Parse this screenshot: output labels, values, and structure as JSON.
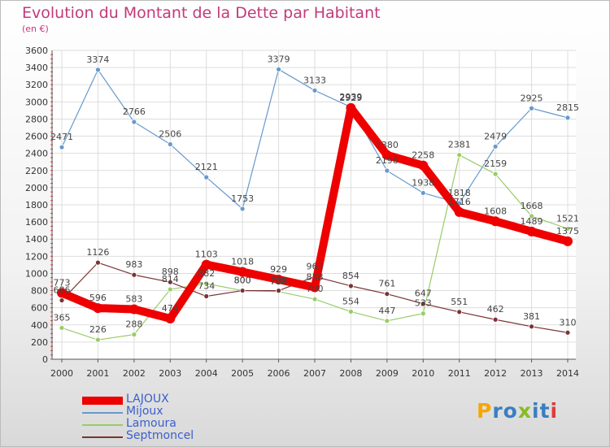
{
  "chart_data": {
    "type": "line",
    "title": "Evolution du Montant de la Dette par Habitant",
    "subtitle": "(en €)",
    "categories": [
      "2000",
      "2001",
      "2002",
      "2003",
      "2004",
      "2005",
      "2006",
      "2007",
      "2008",
      "2009",
      "2010",
      "2011",
      "2012",
      "2013",
      "2014"
    ],
    "ylim": [
      0,
      3600
    ],
    "yticks": [
      0,
      200,
      400,
      600,
      800,
      1000,
      1200,
      1400,
      1600,
      1800,
      2000,
      2200,
      2400,
      2600,
      2800,
      3000,
      3200,
      3400,
      3600
    ],
    "grid": true,
    "legend_position": "bottom-left",
    "series": [
      {
        "name": "LAJOUX",
        "color": "#ee0000",
        "values": [
          773,
          596,
          583,
          474,
          1103,
          1018,
          929,
          838,
          2929,
          2380,
          2258,
          1716,
          1608,
          1489,
          1375
        ]
      },
      {
        "name": "Mijoux",
        "color": "#6699cc",
        "values": [
          2471,
          3374,
          2766,
          2506,
          2121,
          1753,
          3379,
          3133,
          2939,
          2198,
          1938,
          1818,
          2479,
          2925,
          2815
        ]
      },
      {
        "name": "Lamoura",
        "color": "#99cc66",
        "values": [
          365,
          226,
          288,
          814,
          882,
          800,
          788,
          700,
          554,
          447,
          533,
          2381,
          2159,
          1668,
          1521
        ]
      },
      {
        "name": "Septmoncel",
        "color": "#7a3333",
        "values": [
          686,
          1126,
          983,
          898,
          734,
          800,
          799,
          963,
          854,
          761,
          647,
          551,
          462,
          381,
          310
        ]
      }
    ]
  },
  "logo": {
    "letters": [
      "P",
      "r",
      "o",
      "x",
      "i",
      "t",
      "i"
    ],
    "colors": [
      "#f7a600",
      "#3a7fc1",
      "#3a7fc1",
      "#88bb22",
      "#3a7fc1",
      "#3a7fc1",
      "#e03a3a"
    ]
  }
}
